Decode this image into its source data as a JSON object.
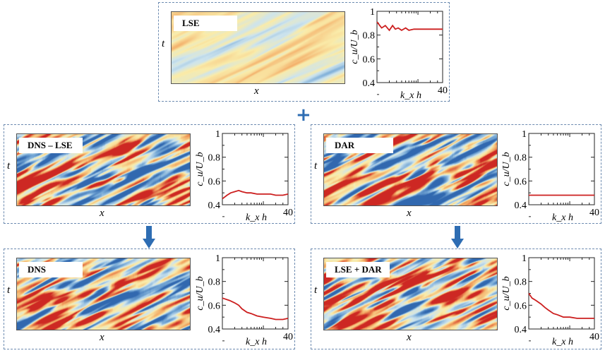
{
  "colors": {
    "curve": "#cc1f1f",
    "border": "#6d8bb0",
    "arrow": "#2e6db3"
  },
  "axes": {
    "t_label": "t",
    "x_label": "x",
    "ylabel": "c_u/U_b",
    "xlabel": "k_x h",
    "xmax_tick": "40",
    "yticks": [
      "1",
      "0.8",
      "0.6",
      "0.4"
    ]
  },
  "operator_plus": "+",
  "panels": [
    {
      "id": "lse",
      "label": "LSE"
    },
    {
      "id": "dns-lse",
      "label": "DNS – LSE"
    },
    {
      "id": "dar",
      "label": "DAR"
    },
    {
      "id": "dns",
      "label": "DNS"
    },
    {
      "id": "lse-dar",
      "label": "LSE + DAR"
    }
  ],
  "chart_data": [
    {
      "type": "line",
      "panel": "LSE",
      "xlabel": "k_x h",
      "ylabel": "c_u/U_b",
      "xlim": [
        1,
        40
      ],
      "xscale": "log",
      "ylim": [
        0.4,
        1
      ],
      "x": [
        1,
        1.3,
        1.6,
        2,
        2.4,
        2.8,
        3.3,
        4,
        5,
        6,
        8,
        10,
        15,
        20,
        30,
        40
      ],
      "y": [
        0.91,
        0.86,
        0.88,
        0.84,
        0.88,
        0.85,
        0.86,
        0.84,
        0.86,
        0.84,
        0.85,
        0.85,
        0.85,
        0.85,
        0.85,
        0.85
      ]
    },
    {
      "type": "line",
      "panel": "DNS – LSE",
      "xlabel": "k_x h",
      "ylabel": "c_u/U_b",
      "xlim": [
        1,
        40
      ],
      "xscale": "log",
      "ylim": [
        0.4,
        1
      ],
      "x": [
        1,
        1.3,
        1.6,
        2,
        2.5,
        3,
        4,
        5,
        7,
        10,
        15,
        20,
        30,
        40
      ],
      "y": [
        0.45,
        0.48,
        0.5,
        0.51,
        0.52,
        0.51,
        0.5,
        0.5,
        0.49,
        0.49,
        0.49,
        0.48,
        0.48,
        0.49
      ]
    },
    {
      "type": "line",
      "panel": "DAR",
      "xlabel": "k_x h",
      "ylabel": "c_u/U_b",
      "xlim": [
        1,
        40
      ],
      "xscale": "log",
      "ylim": [
        0.4,
        1
      ],
      "x": [
        1,
        40
      ],
      "y": [
        0.48,
        0.48
      ]
    },
    {
      "type": "line",
      "panel": "DNS",
      "xlabel": "k_x h",
      "ylabel": "c_u/U_b",
      "xlim": [
        1,
        40
      ],
      "xscale": "log",
      "ylim": [
        0.4,
        1
      ],
      "x": [
        1,
        1.5,
        2,
        2.5,
        3,
        4,
        5,
        7,
        10,
        15,
        20,
        30,
        40
      ],
      "y": [
        0.66,
        0.64,
        0.62,
        0.6,
        0.57,
        0.54,
        0.53,
        0.51,
        0.5,
        0.49,
        0.48,
        0.48,
        0.49
      ]
    },
    {
      "type": "line",
      "panel": "LSE + DAR",
      "xlabel": "k_x h",
      "ylabel": "c_u/U_b",
      "xlim": [
        1,
        40
      ],
      "xscale": "log",
      "ylim": [
        0.4,
        1
      ],
      "x": [
        1,
        1.2,
        1.5,
        2,
        2.5,
        3,
        4,
        5,
        7,
        10,
        15,
        20,
        30,
        40
      ],
      "y": [
        0.7,
        0.66,
        0.64,
        0.61,
        0.58,
        0.56,
        0.53,
        0.52,
        0.5,
        0.5,
        0.49,
        0.49,
        0.49,
        0.49
      ]
    }
  ]
}
